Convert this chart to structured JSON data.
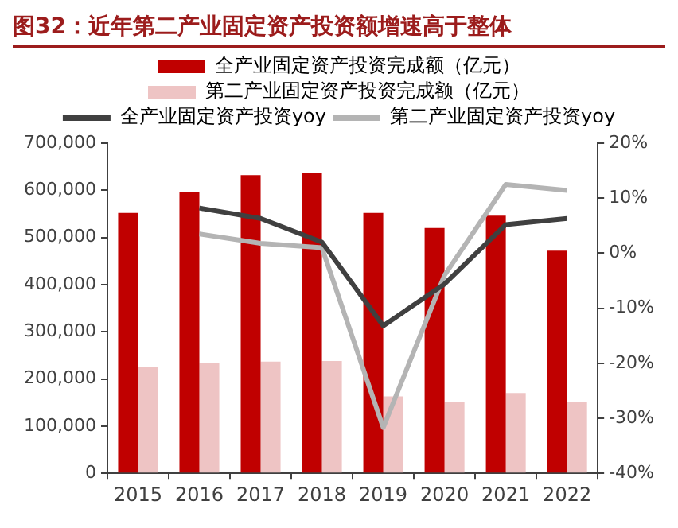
{
  "chart_data": {
    "type": "bar",
    "title": "图32：近年第二产业固定资产投资额增速高于整体",
    "categories": [
      "2015",
      "2016",
      "2017",
      "2018",
      "2019",
      "2020",
      "2021",
      "2022"
    ],
    "series": [
      {
        "name": "全产业固定资产投资完成额（亿元）",
        "color": "#c00000",
        "values": [
          552000,
          597000,
          632000,
          636000,
          552000,
          520000,
          546000,
          472000
        ]
      },
      {
        "name": "第二产业固定资产投资完成额（亿元）",
        "color": "#eec4c4",
        "values": [
          225000,
          233000,
          237000,
          238000,
          163000,
          151000,
          170000,
          151000
        ]
      },
      {
        "name": "全产业固定资产投资yoy",
        "type": "line",
        "axis": "y2",
        "color": "#404040",
        "values": [
          null,
          8.2,
          6.3,
          2,
          -13.2,
          -5.6,
          5.2,
          6.3
        ]
      },
      {
        "name": "第二产业固定资产投资yoy",
        "type": "line",
        "axis": "y2",
        "color": "#b4b4b4",
        "values": [
          null,
          3.5,
          1.8,
          1,
          -31.7,
          -4,
          12.5,
          11.4
        ]
      }
    ],
    "ylim": [
      0,
      700000
    ],
    "yticks": [
      {
        "value": 0,
        "label": "0"
      },
      {
        "value": 100000,
        "label": "100,000"
      },
      {
        "value": 200000,
        "label": "200,000"
      },
      {
        "value": 300000,
        "label": "300,000"
      },
      {
        "value": 400000,
        "label": "400,000"
      },
      {
        "value": 500000,
        "label": "500,000"
      },
      {
        "value": 600000,
        "label": "600,000"
      },
      {
        "value": 700000,
        "label": "700,000"
      }
    ],
    "y2lim": [
      -40,
      20
    ],
    "y2ticks": [
      {
        "value": -40,
        "label": "-40%"
      },
      {
        "value": -30,
        "label": "-30%"
      },
      {
        "value": -20,
        "label": "-20%"
      },
      {
        "value": -10,
        "label": "-10%"
      },
      {
        "value": 0,
        "label": "0%"
      },
      {
        "value": 10,
        "label": "10%"
      },
      {
        "value": 20,
        "label": "20%"
      }
    ],
    "grid": false,
    "legend": "top",
    "marker": "none"
  }
}
